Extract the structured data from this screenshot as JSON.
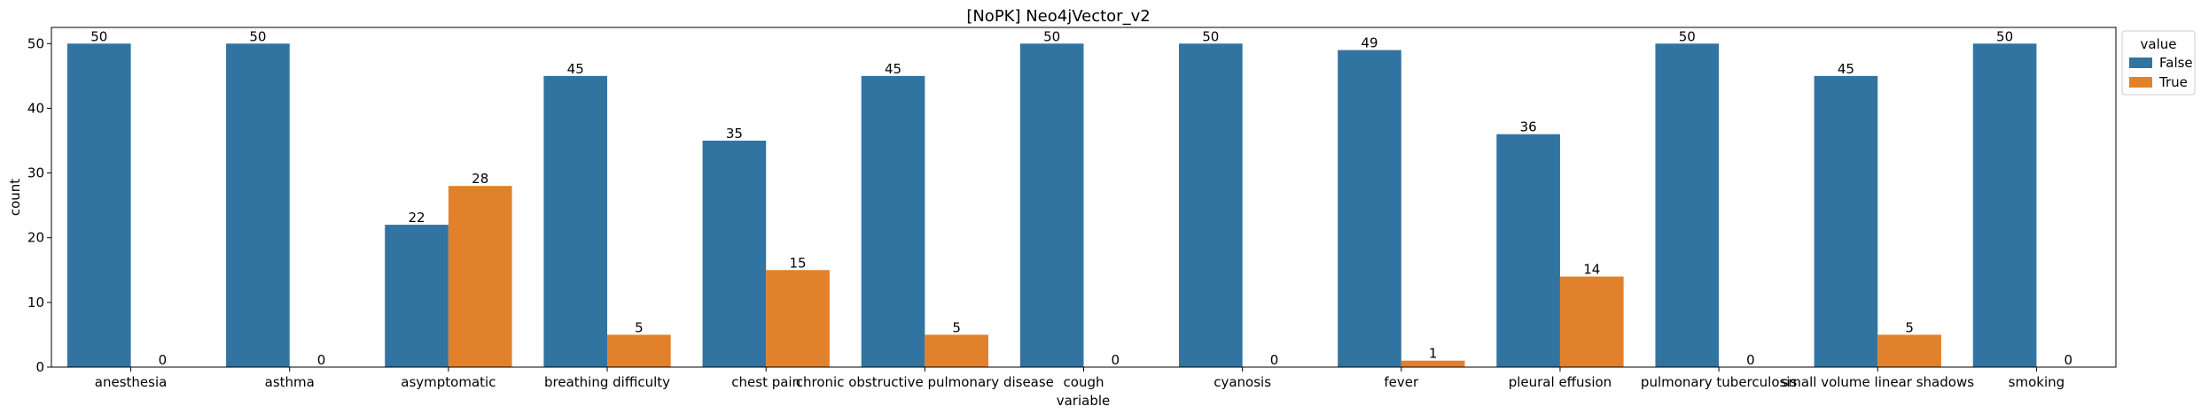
{
  "chart_data": {
    "type": "bar",
    "title": "[NoPK] Neo4jVector_v2",
    "xlabel": "variable",
    "ylabel": "count",
    "ylim": [
      0,
      52.5
    ],
    "yticks": [
      0,
      10,
      20,
      30,
      40,
      50
    ],
    "grid": false,
    "legend_position": "top-right, outside plot",
    "legend_title": "value",
    "categories": [
      "anesthesia",
      "asthma",
      "asymptomatic",
      "breathing difficulty",
      "chest pain",
      "chronic obstructive pulmonary disease",
      "cough",
      "cyanosis",
      "fever",
      "pleural effusion",
      "pulmonary tuberculosis",
      "small volume linear shadows",
      "smoking"
    ],
    "series": [
      {
        "name": "False",
        "color": "#3274a1",
        "values": [
          50,
          50,
          22,
          45,
          35,
          45,
          50,
          50,
          49,
          36,
          50,
          45,
          50
        ]
      },
      {
        "name": "True",
        "color": "#e1812c",
        "values": [
          0,
          0,
          28,
          5,
          15,
          5,
          0,
          0,
          1,
          14,
          0,
          5,
          0
        ]
      }
    ]
  }
}
